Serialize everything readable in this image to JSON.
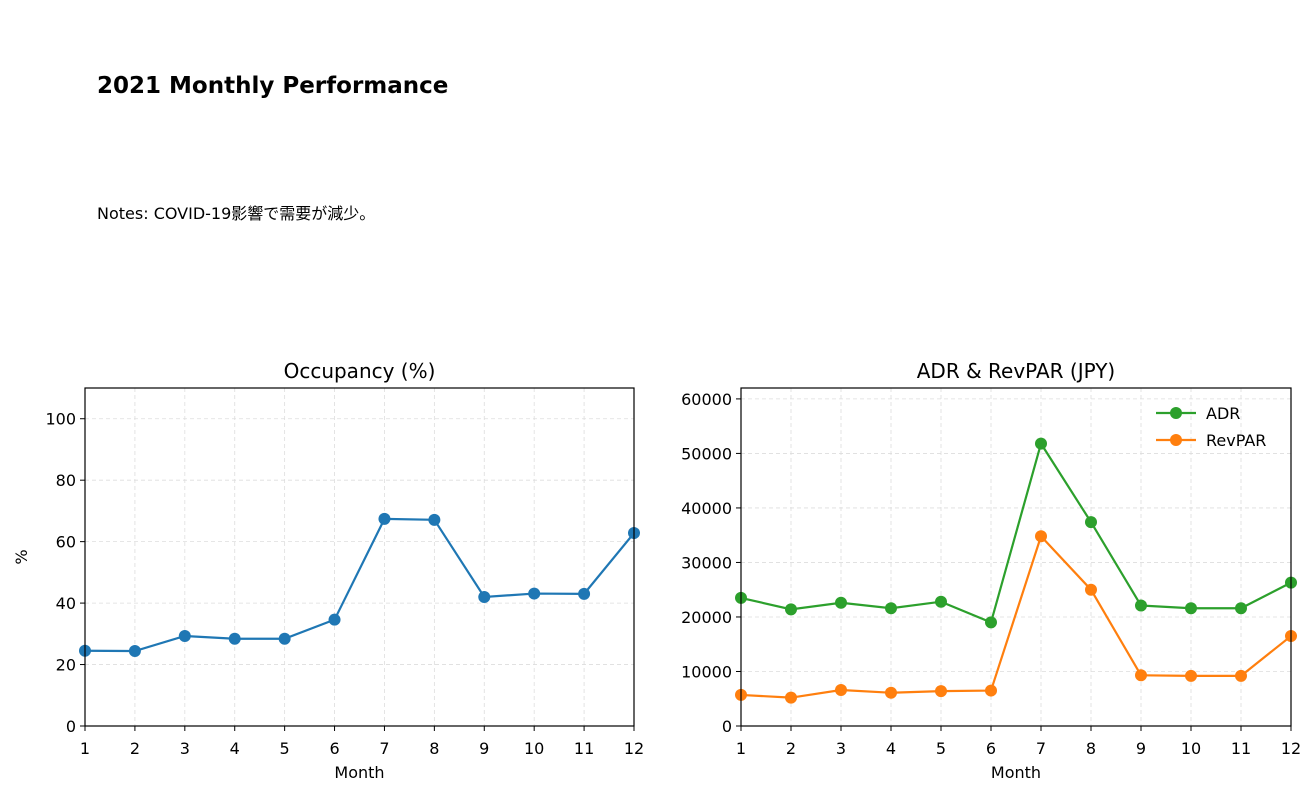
{
  "page": {
    "title": "2021 Monthly Performance",
    "notes": "Notes: COVID-19影響で需要が減少。"
  },
  "colors": {
    "occupancy": "#1f77b4",
    "adr": "#2ca02c",
    "revpar": "#ff7f0e",
    "grid": "#dddddd"
  },
  "chart_data": [
    {
      "type": "line",
      "title": "Occupancy (%)",
      "xlabel": "Month",
      "ylabel": "%",
      "x": [
        1,
        2,
        3,
        4,
        5,
        6,
        7,
        8,
        9,
        10,
        11,
        12
      ],
      "xlim": [
        1,
        12
      ],
      "ylim": [
        0,
        110
      ],
      "yticks": [
        0,
        20,
        40,
        60,
        80,
        100
      ],
      "grid": true,
      "series": [
        {
          "values": [
            24.5,
            24.4,
            29.3,
            28.4,
            28.4,
            34.6,
            67.4,
            67.1,
            42.0,
            43.1,
            43.0,
            62.8
          ]
        }
      ]
    },
    {
      "type": "line",
      "title": "ADR & RevPAR (JPY)",
      "xlabel": "Month",
      "ylabel": "",
      "x": [
        1,
        2,
        3,
        4,
        5,
        6,
        7,
        8,
        9,
        10,
        11,
        12
      ],
      "xlim": [
        1,
        12
      ],
      "ylim": [
        0,
        62000
      ],
      "yticks": [
        0,
        10000,
        20000,
        30000,
        40000,
        50000,
        60000
      ],
      "grid": true,
      "legend": "top-right",
      "series": [
        {
          "name": "ADR",
          "values": [
            23500,
            21400,
            22600,
            21600,
            22800,
            19000,
            51800,
            37400,
            22100,
            21600,
            21600,
            26300
          ]
        },
        {
          "name": "RevPAR",
          "values": [
            5700,
            5200,
            6600,
            6100,
            6400,
            6500,
            34800,
            25000,
            9300,
            9200,
            9200,
            16500
          ]
        }
      ]
    }
  ]
}
